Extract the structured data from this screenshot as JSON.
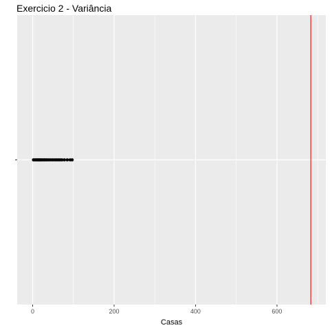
{
  "chart_data": {
    "type": "scatter",
    "title": "Exercicio 2 - Variância",
    "xlabel": "Casas",
    "ylabel": "",
    "xlim": [
      -38,
      720
    ],
    "x_ticks": [
      0,
      200,
      400,
      600
    ],
    "x_tick_labels": [
      "0",
      "200",
      "400",
      "600"
    ],
    "y_category": "",
    "points_x": [
      2,
      5,
      8,
      10,
      12,
      14,
      16,
      18,
      20,
      22,
      25,
      28,
      30,
      33,
      36,
      40,
      44,
      48,
      52,
      56,
      60,
      64,
      68,
      72,
      78,
      85,
      92,
      97
    ],
    "vline": {
      "x": 683,
      "color": "#ff0000"
    },
    "grid": true,
    "colors": {
      "panel": "#ebebeb",
      "grid_major": "#ffffff",
      "point": "#000000",
      "axis_text": "#4d4d4d"
    }
  }
}
